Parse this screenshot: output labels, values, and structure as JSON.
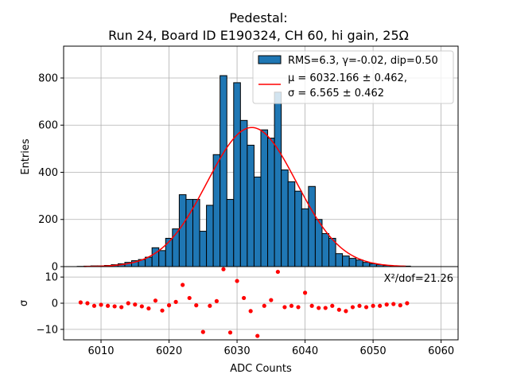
{
  "chart_data": [
    {
      "type": "bar",
      "title_line1": "Pedestal:",
      "title_line2": "Run 24, Board ID E190324, CH 60, hi gain, 25Ω",
      "xlabel": "",
      "ylabel": "Entries",
      "xlim": [
        6004.5,
        6062.5
      ],
      "ylim": [
        0,
        935
      ],
      "yticks": [
        0,
        200,
        400,
        600,
        800
      ],
      "grid": true,
      "legend_position": "top-right",
      "histogram": {
        "name": "RMS=6.3, γ=-0.02, dip=0.50",
        "color": "#1f77b4",
        "bin_width": 1,
        "bin_centers": [
          6007,
          6008,
          6009,
          6010,
          6011,
          6012,
          6013,
          6014,
          6015,
          6016,
          6017,
          6018,
          6019,
          6020,
          6021,
          6022,
          6023,
          6024,
          6025,
          6026,
          6027,
          6028,
          6029,
          6030,
          6031,
          6032,
          6033,
          6034,
          6035,
          6036,
          6037,
          6038,
          6039,
          6040,
          6041,
          6042,
          6043,
          6044,
          6045,
          6046,
          6047,
          6048,
          6049,
          6050,
          6051,
          6052,
          6053,
          6054,
          6055
        ],
        "counts": [
          1,
          2,
          3,
          3,
          5,
          8,
          12,
          18,
          25,
          30,
          40,
          80,
          68,
          120,
          160,
          305,
          285,
          285,
          150,
          260,
          475,
          810,
          285,
          780,
          620,
          515,
          380,
          580,
          545,
          740,
          410,
          360,
          320,
          245,
          340,
          200,
          140,
          120,
          55,
          45,
          35,
          28,
          18,
          12,
          8,
          5,
          3,
          2,
          2
        ]
      },
      "fit": {
        "name_line1": "μ = 6032.166 ± 0.462,",
        "name_line2": "σ = 6.565 ± 0.462",
        "color": "#ff0000",
        "mu": 6032.166,
        "sigma": 6.565,
        "amplitude": 590,
        "x_range": [
          6007.5,
          6054.8
        ]
      }
    },
    {
      "type": "scatter",
      "xlabel": "ADC Counts",
      "ylabel": "σ",
      "xlim": [
        6004.5,
        6062.5
      ],
      "ylim": [
        -14,
        14
      ],
      "xticks": [
        6010,
        6020,
        6030,
        6040,
        6050,
        6060
      ],
      "yticks": [
        -10,
        0,
        10
      ],
      "grid": true,
      "annotation": "X²/dof=21.26",
      "color": "#ff0000",
      "points": {
        "x": [
          6007,
          6008,
          6009,
          6010,
          6011,
          6012,
          6013,
          6014,
          6015,
          6016,
          6017,
          6018,
          6019,
          6020,
          6021,
          6022,
          6023,
          6024,
          6025,
          6026,
          6027,
          6028,
          6029,
          6030,
          6031,
          6032,
          6033,
          6034,
          6035,
          6036,
          6037,
          6038,
          6039,
          6040,
          6041,
          6042,
          6043,
          6044,
          6045,
          6046,
          6047,
          6048,
          6049,
          6050,
          6051,
          6052,
          6053,
          6054,
          6055
        ],
        "y": [
          0.3,
          0.0,
          -1.0,
          -0.6,
          -1.0,
          -1.2,
          -1.5,
          0.0,
          -0.5,
          -1.2,
          -2.0,
          1.0,
          -2.8,
          -0.8,
          0.5,
          7.0,
          2.0,
          -0.8,
          -11.0,
          -1.0,
          0.8,
          13.0,
          -11.2,
          8.5,
          2.0,
          -3.0,
          -12.5,
          -1.0,
          1.2,
          12.0,
          -1.5,
          -1.0,
          -1.5,
          4.0,
          -1.0,
          -1.8,
          -1.8,
          -1.0,
          -2.5,
          -3.0,
          -1.5,
          -1.0,
          -1.5,
          -1.0,
          -1.0,
          -0.5,
          -0.3,
          -0.8,
          0.0
        ]
      }
    }
  ]
}
